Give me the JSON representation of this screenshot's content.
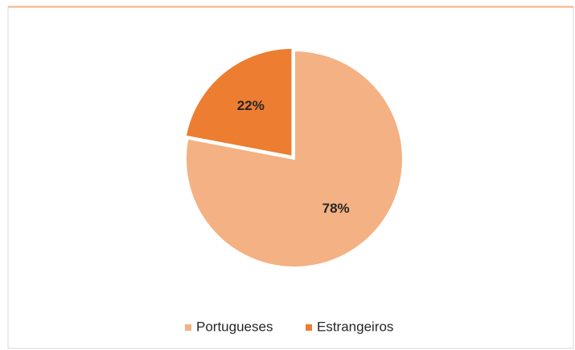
{
  "chart_data": {
    "type": "pie",
    "categories": [
      "Portugueses",
      "Estrangeiros"
    ],
    "values": [
      78,
      22
    ],
    "value_labels": [
      "78%",
      "22%"
    ],
    "colors": [
      "#f4b183",
      "#ed7d31"
    ],
    "legend": "bottom"
  }
}
